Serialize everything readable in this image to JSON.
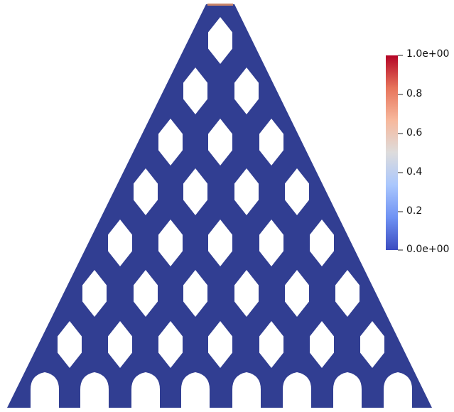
{
  "colormap": {
    "stops": [
      "#3b4cc0",
      "#6f92f3",
      "#aac7fd",
      "#dddcdc",
      "#f7b89c",
      "#e7745b",
      "#b40426"
    ]
  },
  "mesh_color": "#313e92",
  "top_edge_color": "#c9856a",
  "colorbar": {
    "tick_labels": [
      "1.0e+00",
      "0.8",
      "0.6",
      "0.4",
      "0.2",
      "0.0e+00"
    ]
  }
}
